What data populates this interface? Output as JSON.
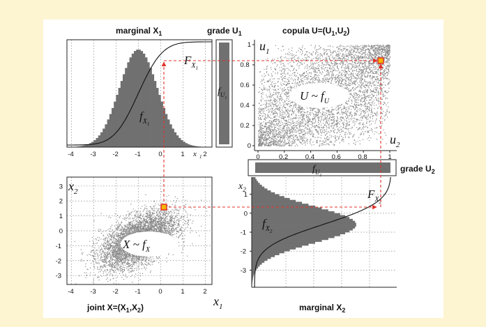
{
  "titles": {
    "marginal_x1": "marginal X",
    "marginal_x1_sub": "1",
    "grade_u1": "grade U",
    "grade_u1_sub": "1",
    "copula": "copula U=(U",
    "copula_sub1": "1",
    "copula_mid": ",U",
    "copula_sub2": "2",
    "copula_end": ")",
    "grade_u2": "grade U",
    "grade_u2_sub": "2",
    "joint": "joint X=(X",
    "joint_sub1": "1",
    "joint_mid": ",X",
    "joint_sub2": "2",
    "joint_end": ")",
    "marginal_x2": "marginal X",
    "marginal_x2_sub": "2"
  },
  "math_labels": {
    "F": "F",
    "f": "f",
    "X": "X",
    "X1": "X",
    "sub1": "1",
    "sub2": "2",
    "U": "U",
    "x1": "x",
    "x2": "x",
    "u1": "u",
    "u2": "u",
    "u_tilde_f": "U ~ f",
    "x_tilde_f": "X ~ f"
  },
  "ticks": {
    "x1_axis": [
      "-4",
      "-3",
      "-2",
      "-1",
      "0",
      "1",
      "x",
      "2"
    ],
    "joint_x1_axis": [
      "-4",
      "-3",
      "-2",
      "-1",
      "0",
      "1",
      "2"
    ],
    "joint_x2_axis": [
      "3",
      "2",
      "1",
      "0",
      "-1",
      "-2",
      "-3"
    ],
    "copula_u1_axis": [
      "1",
      "0.8",
      "0.6",
      "0.4",
      "0.2",
      "0"
    ],
    "copula_u2_axis": [
      "0",
      "0.2",
      "0.4",
      "0.6",
      "0.8",
      "1"
    ],
    "marg2_axis": [
      "1",
      "0",
      "-1",
      "-2",
      "-3"
    ]
  },
  "colors": {
    "background": "#fdf5d2",
    "panel": "#ffffff",
    "histogram": "#707070",
    "scatter": "#8a8a8a",
    "dashed_arrow": "#e0312a",
    "marker_fill": "#f4b400",
    "marker_stroke": "#e0312a"
  },
  "icons": {
    "marker": "point-marker",
    "arrow": "dashed-red-arrow"
  }
}
